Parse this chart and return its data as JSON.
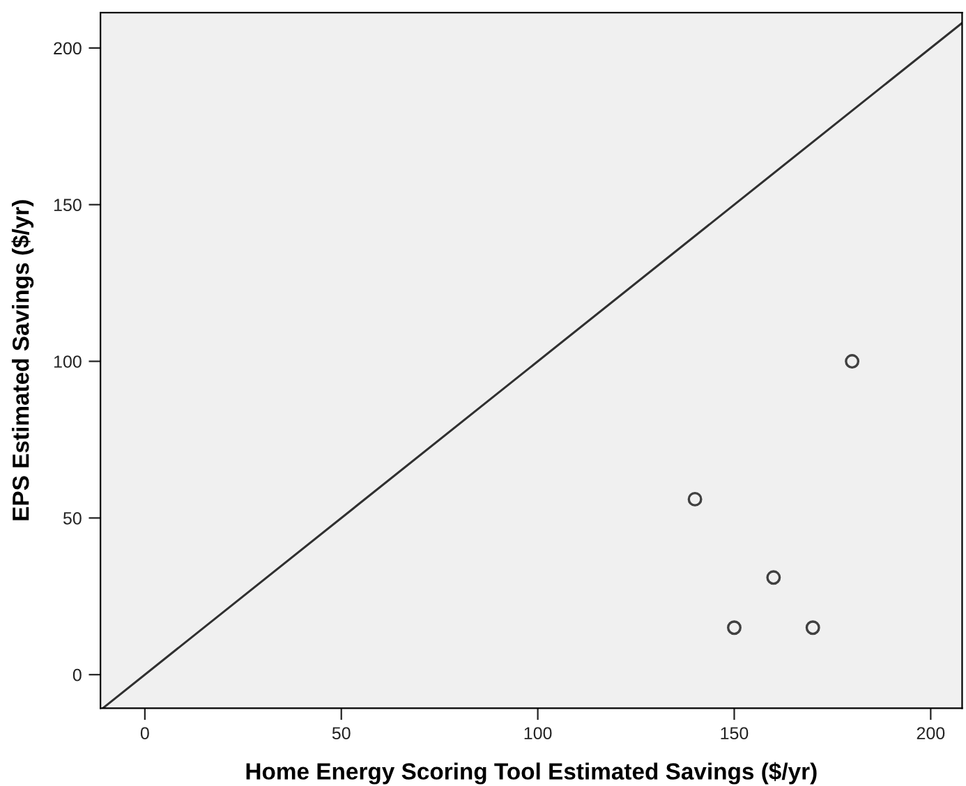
{
  "chart_data": {
    "type": "scatter",
    "xlabel": "Home Energy Scoring Tool Estimated Savings ($/yr)",
    "ylabel": "EPS Estimated Savings ($/yr)",
    "xlim": [
      -11.3,
      208
    ],
    "ylim": [
      -10.7,
      211.3
    ],
    "xticks": [
      0,
      50,
      100,
      150,
      200
    ],
    "yticks": [
      0,
      50,
      100,
      150,
      200
    ],
    "grid": false,
    "legend": false,
    "series": [
      {
        "marker": "circle",
        "color": "#404040",
        "x": [
          180,
          140,
          160,
          150,
          170
        ],
        "values": [
          100,
          56,
          31,
          15,
          15
        ]
      },
      {
        "type": "line",
        "marker": "none",
        "line_style": "solid",
        "color": "#303030",
        "x": [
          -10.7,
          208
        ],
        "values": [
          -10.7,
          208
        ]
      }
    ]
  }
}
